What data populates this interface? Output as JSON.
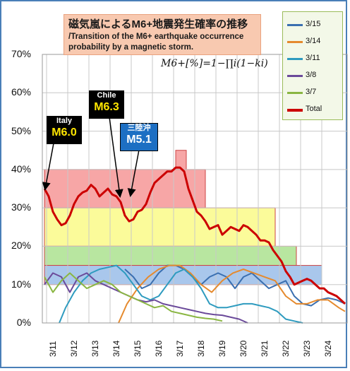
{
  "title": {
    "jp": "磁気嵐によるM6+地震発生確率の推移",
    "en": "/Transition of the M6+ earthquake occurrence probability by a magnetic storm."
  },
  "formula": "M6+[%]=1−∏i(1−ki)",
  "legend": [
    {
      "label": "3/15",
      "color": "#3a6fb0"
    },
    {
      "label": "3/14",
      "color": "#e58a2e"
    },
    {
      "label": "3/11",
      "color": "#2e9bbf"
    },
    {
      "label": "3/8",
      "color": "#6b4a9a"
    },
    {
      "label": "3/7",
      "color": "#8ab642"
    },
    {
      "label": "Total",
      "color": "#cc0000"
    }
  ],
  "callouts": {
    "italy": {
      "region": "Italy",
      "mag": "M6.0"
    },
    "chile": {
      "region": "Chile",
      "mag": "M6.3"
    },
    "sanriku": {
      "region": "三陸沖",
      "mag": "M5.1"
    }
  },
  "chart_data": {
    "type": "line",
    "ylim": [
      0,
      70
    ],
    "yticks": [
      "0%",
      "10%",
      "20%",
      "30%",
      "40%",
      "50%",
      "60%",
      "70%"
    ],
    "xlim": [
      10.5,
      24.9
    ],
    "xticks": [
      "3/11",
      "3/12",
      "3/13",
      "3/14",
      "3/15",
      "3/16",
      "3/17",
      "3/18",
      "3/19",
      "3/20",
      "3/21",
      "3/22",
      "3/23",
      "3/24"
    ],
    "grid": true,
    "bands": [
      {
        "from": 10.6,
        "to": 18.2,
        "y0": 30,
        "y1": 40,
        "color": "#f7a6a6"
      },
      {
        "from": 16.8,
        "to": 17.3,
        "y0": 40,
        "y1": 45,
        "color": "#f7a6a6"
      },
      {
        "from": 10.6,
        "to": 21.5,
        "y0": 20,
        "y1": 30,
        "color": "#fbfb9a"
      },
      {
        "from": 10.6,
        "to": 22.5,
        "y0": 15,
        "y1": 20,
        "color": "#b8e6a0"
      },
      {
        "from": 10.6,
        "to": 23.7,
        "y0": 10,
        "y1": 15,
        "color": "#a9c7ec"
      }
    ],
    "series": [
      {
        "name": "Total",
        "width": 3,
        "color": "#cc0000",
        "x": [
          10.6,
          10.8,
          11.0,
          11.2,
          11.4,
          11.6,
          11.8,
          12.0,
          12.2,
          12.4,
          12.6,
          12.8,
          13.0,
          13.2,
          13.4,
          13.6,
          13.8,
          14.0,
          14.2,
          14.4,
          14.6,
          14.8,
          15.0,
          15.2,
          15.4,
          15.6,
          15.8,
          16.0,
          16.2,
          16.4,
          16.6,
          16.8,
          17.0,
          17.2,
          17.4,
          17.6,
          17.8,
          18.0,
          18.2,
          18.4,
          18.6,
          18.8,
          19.0,
          19.2,
          19.4,
          19.6,
          19.8,
          20.0,
          20.2,
          20.4,
          20.6,
          20.8,
          21.0,
          21.2,
          21.4,
          21.6,
          21.8,
          22.0,
          22.2,
          22.4,
          22.6,
          22.8,
          23.0,
          23.2,
          23.4,
          23.6,
          23.8,
          24.0,
          24.2,
          24.4,
          24.6,
          24.8
        ],
        "y": [
          35,
          33,
          29,
          27,
          25.5,
          26,
          28,
          31,
          33,
          34,
          34.5,
          36,
          35,
          33,
          34,
          35,
          33.5,
          33,
          31.5,
          28,
          26.5,
          27,
          29,
          29.5,
          31,
          34,
          36.5,
          37.5,
          38.5,
          39.5,
          39.5,
          40.5,
          40.5,
          39.5,
          35,
          32,
          29,
          28,
          26.5,
          24.5,
          25,
          25.5,
          23,
          24,
          25,
          24.5,
          24,
          25.5,
          25,
          24,
          23,
          21.5,
          21.5,
          21,
          19,
          17.5,
          16,
          13.5,
          12,
          10,
          10.5,
          11,
          11.5,
          11,
          10,
          9,
          9,
          8,
          7.5,
          7,
          6,
          5
        ]
      },
      {
        "name": "3/15",
        "width": 2,
        "color": "#3a6fb0",
        "x": [
          14.4,
          14.8,
          15.2,
          15.6,
          16.0,
          16.4,
          16.8,
          17.2,
          17.6,
          18.0,
          18.4,
          18.8,
          19.2,
          19.6,
          20.0,
          20.4,
          20.8,
          21.2,
          21.6,
          22.0,
          22.4,
          22.8,
          23.2,
          23.6,
          24.0,
          24.4,
          24.8
        ],
        "y": [
          14,
          12,
          9,
          10,
          13,
          15,
          15,
          14,
          12,
          10,
          12,
          13,
          12,
          9,
          12,
          13,
          11,
          9,
          10,
          11,
          7,
          5,
          4.5,
          6,
          6.5,
          6,
          5
        ]
      },
      {
        "name": "3/14",
        "width": 2,
        "color": "#e58a2e",
        "x": [
          14.1,
          14.5,
          15.0,
          15.5,
          16.0,
          16.5,
          17.0,
          17.5,
          18.0,
          18.5,
          19.0,
          19.5,
          20.0,
          20.5,
          21.0,
          21.5,
          22.0,
          22.5,
          23.0,
          23.5,
          24.0,
          24.5,
          24.8
        ],
        "y": [
          0,
          5,
          9,
          12,
          14,
          15,
          15,
          13,
          10,
          8,
          11,
          13,
          14,
          13,
          12,
          11,
          7,
          5,
          5,
          6,
          6,
          4,
          3
        ]
      },
      {
        "name": "3/11",
        "width": 2,
        "color": "#2e9bbf",
        "x": [
          11.3,
          11.6,
          12.0,
          12.4,
          12.8,
          13.2,
          13.6,
          14.0,
          14.4,
          14.8,
          15.2,
          15.6,
          16.0,
          16.4,
          16.8,
          17.2,
          17.6,
          18.0,
          18.4,
          18.8,
          19.2,
          19.6,
          20.0,
          20.4,
          20.8,
          21.2,
          21.6,
          22.0,
          22.4,
          22.8
        ],
        "y": [
          0,
          4,
          8,
          11,
          13,
          14,
          14.5,
          15,
          13,
          10,
          7,
          6,
          7,
          10,
          13,
          14,
          12,
          9,
          5,
          4,
          4,
          4.5,
          5,
          5,
          4.5,
          4,
          3,
          1,
          0.5,
          0
        ]
      },
      {
        "name": "3/8",
        "width": 2,
        "color": "#6b4a9a",
        "x": [
          10.6,
          11.0,
          11.4,
          11.8,
          12.2,
          12.6,
          13.0,
          13.4,
          13.8,
          14.2,
          14.6,
          15.0,
          15.4,
          15.8,
          16.2,
          16.6,
          17.0,
          17.4,
          17.8,
          18.2,
          18.6,
          19.0,
          19.4,
          19.8,
          20.2
        ],
        "y": [
          10,
          13,
          12,
          8,
          12,
          13,
          11,
          10,
          9,
          8,
          7,
          6,
          5.5,
          6,
          5,
          4.5,
          4,
          3.5,
          3,
          2.5,
          2.2,
          2,
          1.5,
          1,
          0
        ]
      },
      {
        "name": "3/7",
        "width": 2,
        "color": "#8ab642",
        "x": [
          10.6,
          11.0,
          11.4,
          11.8,
          12.2,
          12.6,
          13.0,
          13.4,
          13.8,
          14.2,
          14.6,
          15.0,
          15.4,
          15.8,
          16.2,
          16.6,
          17.0,
          17.4,
          17.8,
          18.2,
          18.6,
          19.0
        ],
        "y": [
          12,
          8,
          11,
          13,
          11,
          9,
          10,
          11,
          10,
          8,
          7,
          6,
          5,
          4,
          4.5,
          3,
          2.5,
          2,
          1.5,
          1.2,
          1,
          0.5
        ]
      }
    ]
  }
}
